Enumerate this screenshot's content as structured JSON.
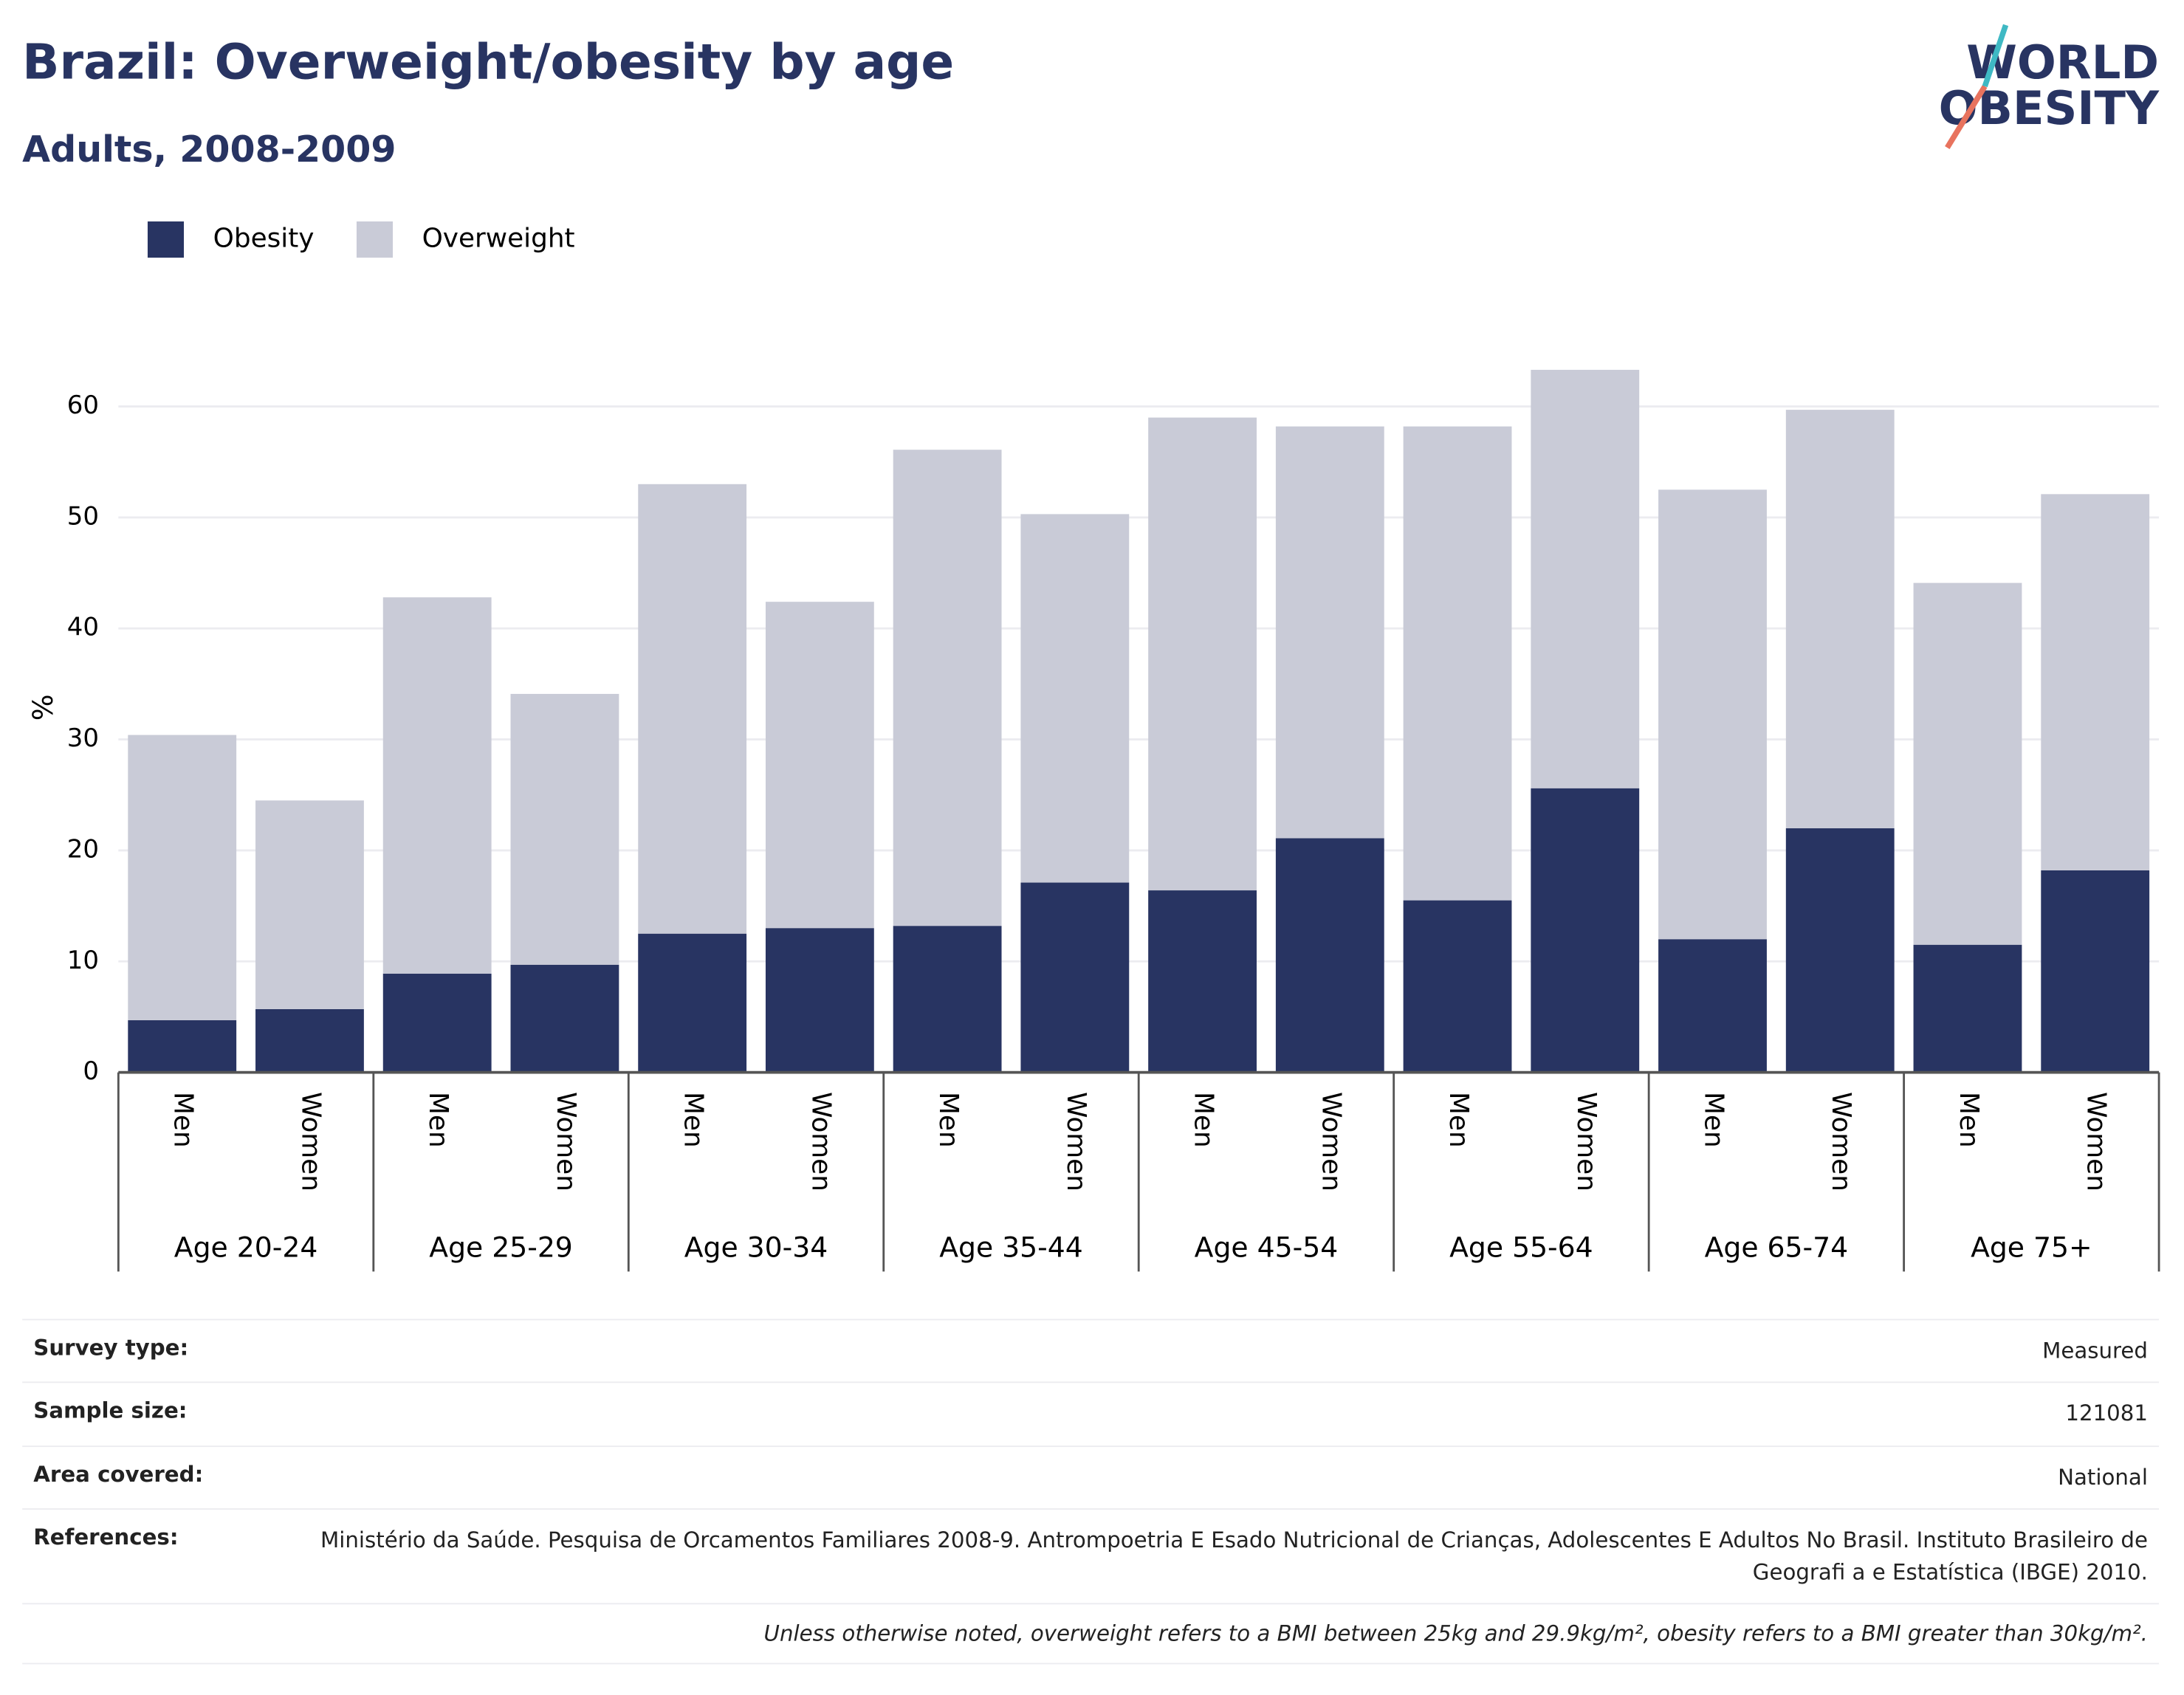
{
  "chart_data": {
    "type": "stacked_bar",
    "title": "Brazil: Overweight/obesity by age",
    "subtitle": "Adults, 2008-2009",
    "y_label": "%",
    "categories": [
      "Men",
      "Women",
      "Men",
      "Women",
      "Men",
      "Women",
      "Men",
      "Women",
      "Men",
      "Women",
      "Men",
      "Women",
      "Men",
      "Women",
      "Men",
      "Women"
    ],
    "groups": [
      "Age 20-24",
      "Age 25-29",
      "Age 30-34",
      "Age 35-44",
      "Age 45-54",
      "Age 55-64",
      "Age 65-74",
      "Age 75+"
    ],
    "series": [
      {
        "name": "Obesity",
        "color": "#283462",
        "values": [
          4.7,
          5.7,
          8.9,
          9.7,
          12.5,
          13.0,
          13.2,
          17.1,
          16.4,
          21.1,
          15.5,
          25.6,
          12.0,
          22.0,
          11.5,
          18.2
        ]
      },
      {
        "name": "Overweight",
        "color": "#c9cbd7",
        "values": [
          25.7,
          18.8,
          33.9,
          24.4,
          40.5,
          29.4,
          42.9,
          33.2,
          42.6,
          37.1,
          42.7,
          37.7,
          40.5,
          37.7,
          32.6,
          33.9
        ]
      }
    ],
    "ylim": [
      0,
      65
    ],
    "yticks": [
      0,
      10,
      20,
      30,
      40,
      50,
      60
    ],
    "grid": true,
    "legend": "top-left"
  },
  "logo": [
    "WORLD",
    "OBESITY"
  ],
  "details": [
    {
      "label": "Survey type:",
      "value": "Measured"
    },
    {
      "label": "Sample size:",
      "value": "121081"
    },
    {
      "label": "Area covered:",
      "value": "National"
    },
    {
      "label": "References:",
      "value": "Ministério da Saúde. Pesquisa de Orcamentos Familiares 2008-9. Antrompoetria E Esado Nutricional de Crianças, Adolescentes E Adultos No Brasil. Instituto Brasileiro de Geografi a e Estatística (IBGE) 2010."
    }
  ],
  "footnote": "Unless otherwise noted, overweight refers to a BMI between 25kg and 29.9kg/m², obesity refers to a BMI greater than 30kg/m²."
}
